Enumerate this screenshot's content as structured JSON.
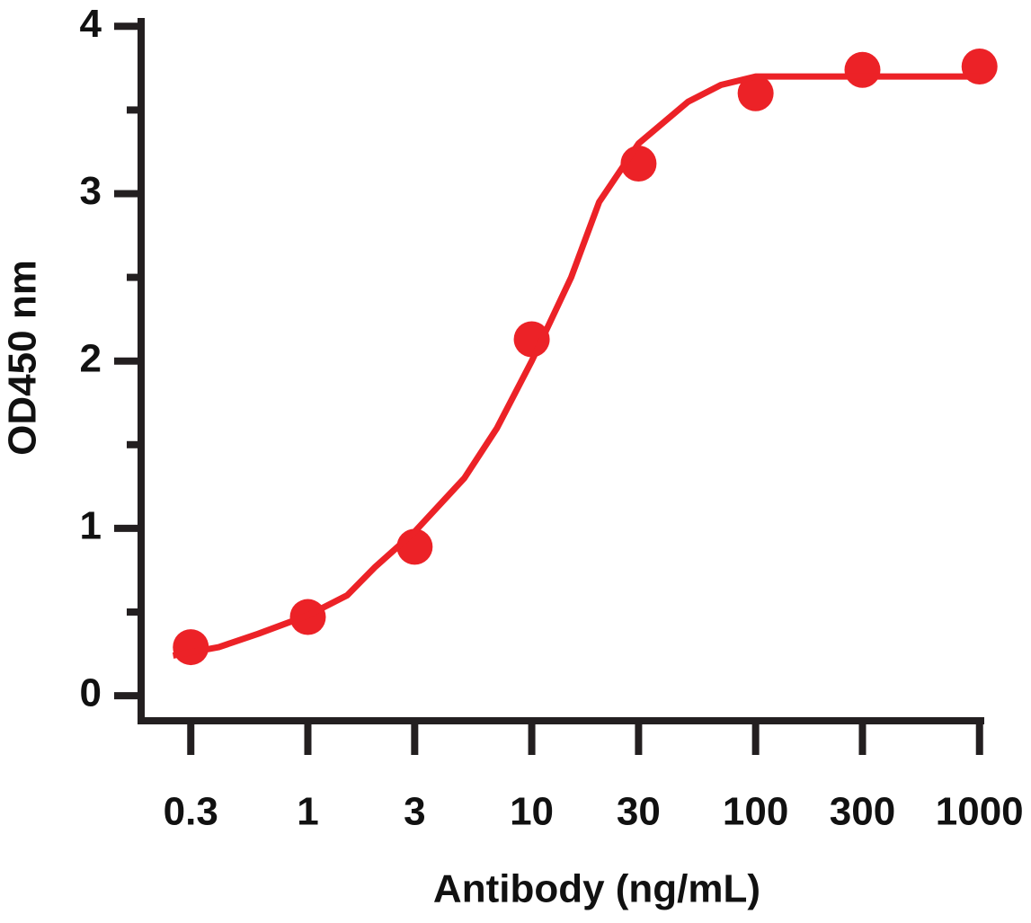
{
  "chart_data": {
    "type": "scatter",
    "x_label": "Antibody (ng/mL)",
    "y_label": "OD450 nm",
    "x_scale": "log",
    "xlim": [
      0.18,
      1050
    ],
    "xticks": [
      0.3,
      1,
      3,
      10,
      30,
      100,
      300,
      1000
    ],
    "ylim": [
      -0.15,
      4.05
    ],
    "yticks": [
      0,
      1,
      2,
      3,
      4
    ],
    "minor_yticks": [
      0.5,
      1.5,
      2.5,
      3.5
    ],
    "series": [
      {
        "color": "#ec2227",
        "x": [
          0.3,
          1,
          3,
          10,
          30,
          100,
          300,
          1000
        ],
        "values": [
          0.29,
          0.47,
          0.89,
          2.13,
          3.18,
          3.6,
          3.74,
          3.76
        ]
      },
      {
        "color": "#ec2227",
        "line": true,
        "x": [
          0.25,
          0.4,
          0.6,
          1,
          1.5,
          2,
          3,
          5,
          7,
          10,
          15,
          20,
          30,
          50,
          70,
          100,
          300,
          1000
        ],
        "values": [
          0.24,
          0.29,
          0.37,
          0.48,
          0.6,
          0.77,
          0.98,
          1.3,
          1.6,
          2.0,
          2.5,
          2.95,
          3.3,
          3.55,
          3.65,
          3.7,
          3.7,
          3.7
        ]
      }
    ]
  }
}
